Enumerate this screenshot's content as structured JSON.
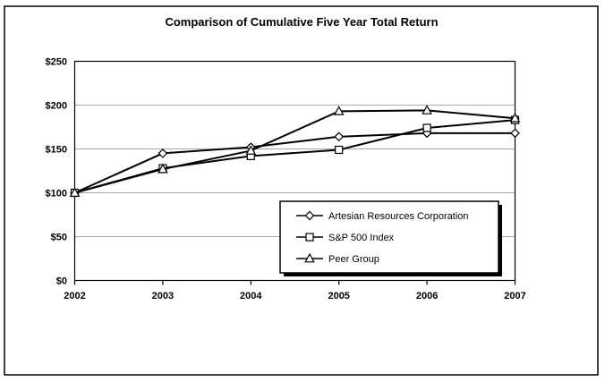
{
  "frame": {
    "background": "#ffffff",
    "border_color": "#000000"
  },
  "chart_data": {
    "type": "line",
    "title": "Comparison of Cumulative Five Year Total Return",
    "categories": [
      "2002",
      "2003",
      "2004",
      "2005",
      "2006",
      "2007"
    ],
    "series": [
      {
        "name": "Artesian Resources Corporation",
        "marker": "diamond",
        "color": "#000000",
        "values": [
          100,
          145,
          152,
          164,
          168,
          168
        ]
      },
      {
        "name": "S&P 500 Index",
        "marker": "square",
        "color": "#000000",
        "values": [
          100,
          128,
          142,
          149,
          174,
          183
        ]
      },
      {
        "name": "Peer Group",
        "marker": "triangle",
        "color": "#000000",
        "values": [
          100,
          127,
          148,
          193,
          194,
          185
        ]
      }
    ],
    "y_axis": {
      "min": 0,
      "max": 250,
      "step": 50,
      "tick_labels": [
        "$0",
        "$50",
        "$100",
        "$150",
        "$200",
        "$250"
      ]
    },
    "x_axis": {
      "tick_labels": [
        "2002",
        "2003",
        "2004",
        "2005",
        "2006",
        "2007"
      ]
    },
    "grid": true,
    "gridline_color": "#a6a6a6",
    "line_color": "#000000",
    "marker_fill": "#ffffff",
    "legend": {
      "position": "inside-bottom-right",
      "border": true,
      "shadow": true
    }
  }
}
